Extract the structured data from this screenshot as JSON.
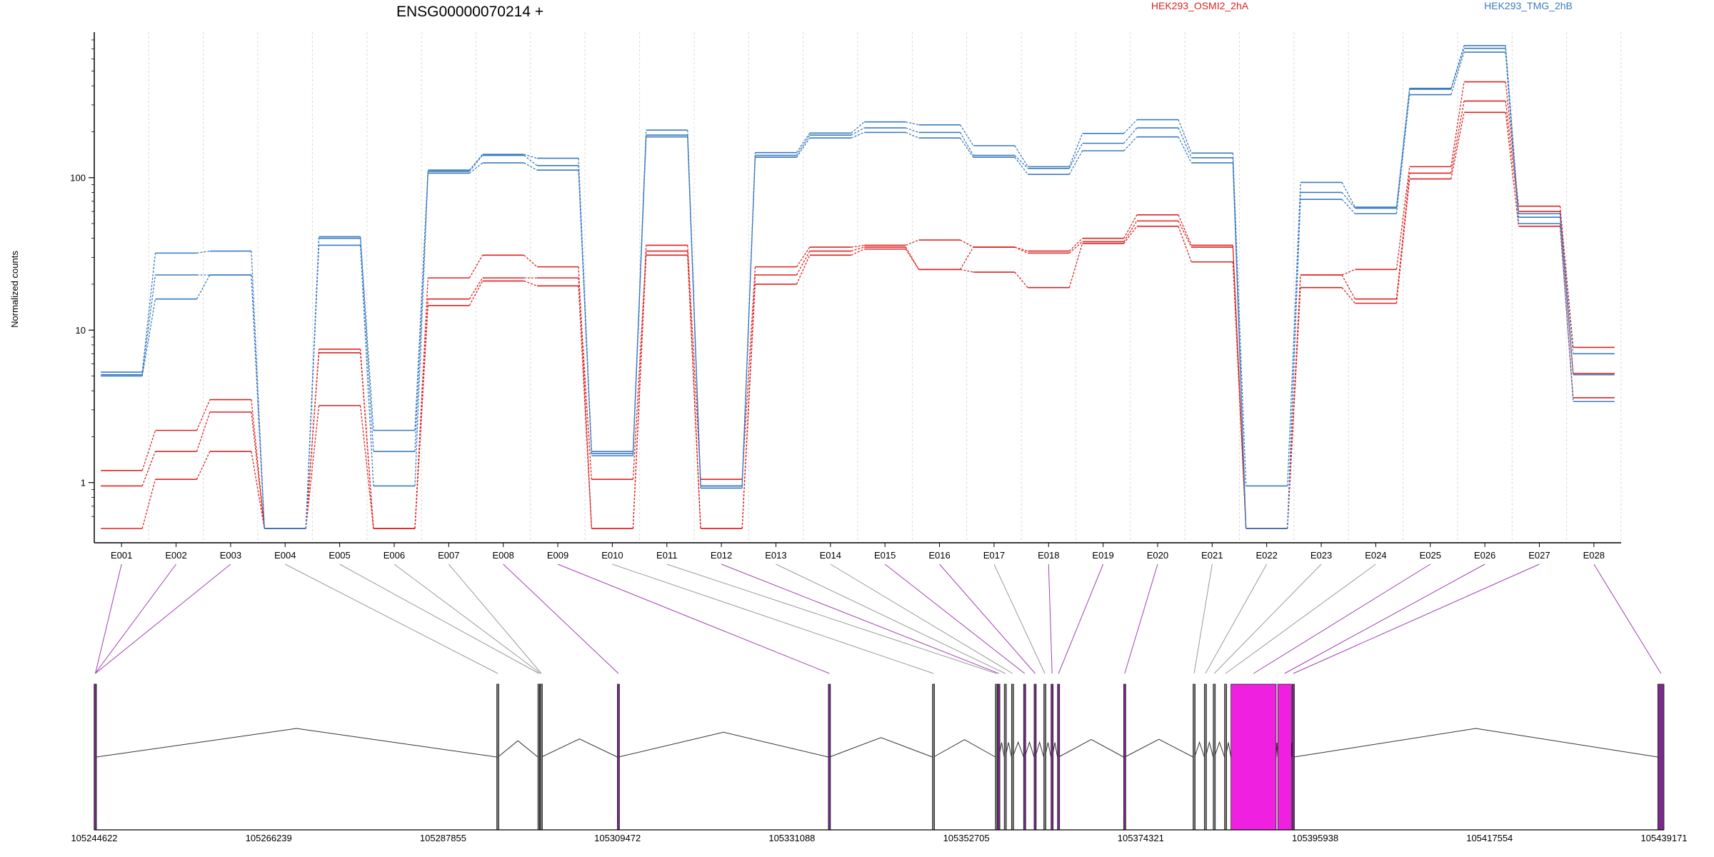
{
  "chart_data": {
    "type": "line",
    "title": "ENSG00000070214 +",
    "ylabel": "Normalized counts",
    "xlabel": "",
    "yscale": "log",
    "ylim": [
      0.5,
      900
    ],
    "y_ticks": [
      "1",
      "10",
      "100"
    ],
    "grid": "vertical dashed lines at exon bins",
    "legend_placement": "top-right",
    "categories": [
      "E001",
      "E002",
      "E003",
      "E004",
      "E005",
      "E006",
      "E007",
      "E008",
      "E009",
      "E010",
      "E011",
      "E012",
      "E013",
      "E014",
      "E015",
      "E016",
      "E017",
      "E018",
      "E019",
      "E020",
      "E021",
      "E022",
      "E023",
      "E024",
      "E025",
      "E026",
      "E027",
      "E028"
    ],
    "series": [
      {
        "name": "HEK293_OSMI2_2hA",
        "group": "HEK293_OSMI2_2hA",
        "color": "#dd2222",
        "values": [
          1.2,
          2.2,
          3.5,
          0.5,
          7.5,
          0.5,
          22,
          31,
          26,
          0.5,
          36,
          1.05,
          26,
          35,
          36,
          39,
          35,
          33,
          40,
          57,
          36,
          0.5,
          23,
          25,
          118,
          425,
          65,
          7.7
        ]
      },
      {
        "name": "HEK293_OSMI2_2hA",
        "group": "HEK293_OSMI2_2hA",
        "color": "#dd2222",
        "values": [
          0.95,
          1.6,
          2.9,
          0.5,
          7.1,
          0.5,
          16,
          22,
          22,
          1.05,
          33,
          0.5,
          23,
          33,
          35,
          25,
          35,
          32,
          38,
          52,
          35,
          0.5,
          23,
          16,
          107,
          318,
          60,
          5.2
        ]
      },
      {
        "name": "HEK293_OSMI2_2hA",
        "group": "HEK293_OSMI2_2hA",
        "color": "#dd2222",
        "values": [
          0.5,
          1.05,
          1.6,
          0.5,
          3.2,
          0.5,
          14.5,
          21,
          19.5,
          0.5,
          31,
          0.5,
          20,
          31,
          34,
          25,
          24,
          19,
          37,
          48,
          28,
          0.5,
          19,
          15,
          98,
          268,
          48,
          3.6
        ]
      },
      {
        "name": "HEK293_TMG_2hB",
        "group": "HEK293_TMG_2hB",
        "color": "#3a7bbf",
        "values": [
          5.3,
          32,
          33,
          0.5,
          41,
          2.2,
          112,
          142,
          134,
          1.6,
          205,
          0.95,
          146,
          196,
          232,
          222,
          162,
          118,
          195,
          240,
          145,
          0.95,
          93,
          64,
          385,
          735,
          58,
          7
        ]
      },
      {
        "name": "HEK293_TMG_2hB",
        "group": "HEK293_TMG_2hB",
        "color": "#3a7bbf",
        "values": [
          5.1,
          23,
          23,
          0.5,
          40,
          1.6,
          110,
          140,
          120,
          1.55,
          190,
          0.95,
          140,
          190,
          212,
          198,
          140,
          115,
          168,
          212,
          135,
          0.5,
          80,
          63,
          380,
          705,
          55,
          5.1
        ]
      },
      {
        "name": "HEK293_TMG_2hB",
        "group": "HEK293_TMG_2hB",
        "color": "#3a7bbf",
        "values": [
          5,
          16,
          23,
          0.5,
          36,
          0.95,
          107,
          125,
          112,
          1.5,
          185,
          0.92,
          136,
          182,
          198,
          182,
          136,
          105,
          150,
          185,
          125,
          0.5,
          72,
          58,
          350,
          665,
          50,
          3.4
        ]
      }
    ],
    "legend": [
      {
        "label": "HEK293_OSMI2_2hA",
        "color": "#dd2222"
      },
      {
        "label": "HEK293_TMG_2hB",
        "color": "#3a7bbf"
      }
    ],
    "gene_model": {
      "coordinate_ticks": [
        "105244622",
        "105266239",
        "105287855",
        "105309472",
        "105331088",
        "105352705",
        "105374321",
        "105395938",
        "105417554",
        "105439171"
      ],
      "coordinate_tick_values": [
        105244622,
        105266239,
        105287855,
        105309472,
        105331088,
        105352705,
        105374321,
        105395938,
        105417554,
        105439171
      ],
      "exons": [
        {
          "id": "E001",
          "start": 105244622,
          "end": 105244870,
          "highlight": true
        },
        {
          "id": "E002",
          "start": 105244600,
          "end": 105244650,
          "highlight": true
        },
        {
          "id": "E003",
          "start": 105244620,
          "end": 105244680,
          "highlight": true
        },
        {
          "id": "E004",
          "start": 105294500,
          "end": 105294650,
          "highlight": false
        },
        {
          "id": "E005",
          "start": 105299600,
          "end": 105299750,
          "highlight": false
        },
        {
          "id": "E006",
          "start": 105299800,
          "end": 105299950,
          "highlight": false
        },
        {
          "id": "E007",
          "start": 105299900,
          "end": 105300050,
          "highlight": false
        },
        {
          "id": "E008",
          "start": 105309450,
          "end": 105309600,
          "highlight": true
        },
        {
          "id": "E009",
          "start": 105335600,
          "end": 105335750,
          "highlight": true
        },
        {
          "id": "E010",
          "start": 105348500,
          "end": 105348650,
          "highlight": false
        },
        {
          "id": "E011",
          "start": 105356300,
          "end": 105356450,
          "highlight": false
        },
        {
          "id": "E012",
          "start": 105356600,
          "end": 105356750,
          "highlight": true
        },
        {
          "id": "E013",
          "start": 105357400,
          "end": 105357550,
          "highlight": false
        },
        {
          "id": "E014",
          "start": 105358300,
          "end": 105358450,
          "highlight": false
        },
        {
          "id": "E015",
          "start": 105359800,
          "end": 105359950,
          "highlight": true
        },
        {
          "id": "E016",
          "start": 105361100,
          "end": 105361250,
          "highlight": true
        },
        {
          "id": "E017",
          "start": 105362300,
          "end": 105362450,
          "highlight": false
        },
        {
          "id": "E018",
          "start": 105363200,
          "end": 105363350,
          "highlight": true
        },
        {
          "id": "E019",
          "start": 105364000,
          "end": 105364150,
          "highlight": true
        },
        {
          "id": "E020",
          "start": 105372200,
          "end": 105372350,
          "highlight": true
        },
        {
          "id": "E021",
          "start": 105380800,
          "end": 105381000,
          "highlight": false
        },
        {
          "id": "E022",
          "start": 105382200,
          "end": 105382350,
          "highlight": false
        },
        {
          "id": "E023",
          "start": 105383300,
          "end": 105383450,
          "highlight": false
        },
        {
          "id": "E024",
          "start": 105384700,
          "end": 105384850,
          "highlight": false
        },
        {
          "id": "E025",
          "start": 105385500,
          "end": 105391100,
          "highlight": true
        },
        {
          "id": "E026",
          "start": 105391300,
          "end": 105393000,
          "highlight": true
        },
        {
          "id": "E027",
          "start": 105393100,
          "end": 105393300,
          "highlight": true
        },
        {
          "id": "E028",
          "start": 105438400,
          "end": 105439171,
          "highlight": true
        }
      ]
    }
  }
}
